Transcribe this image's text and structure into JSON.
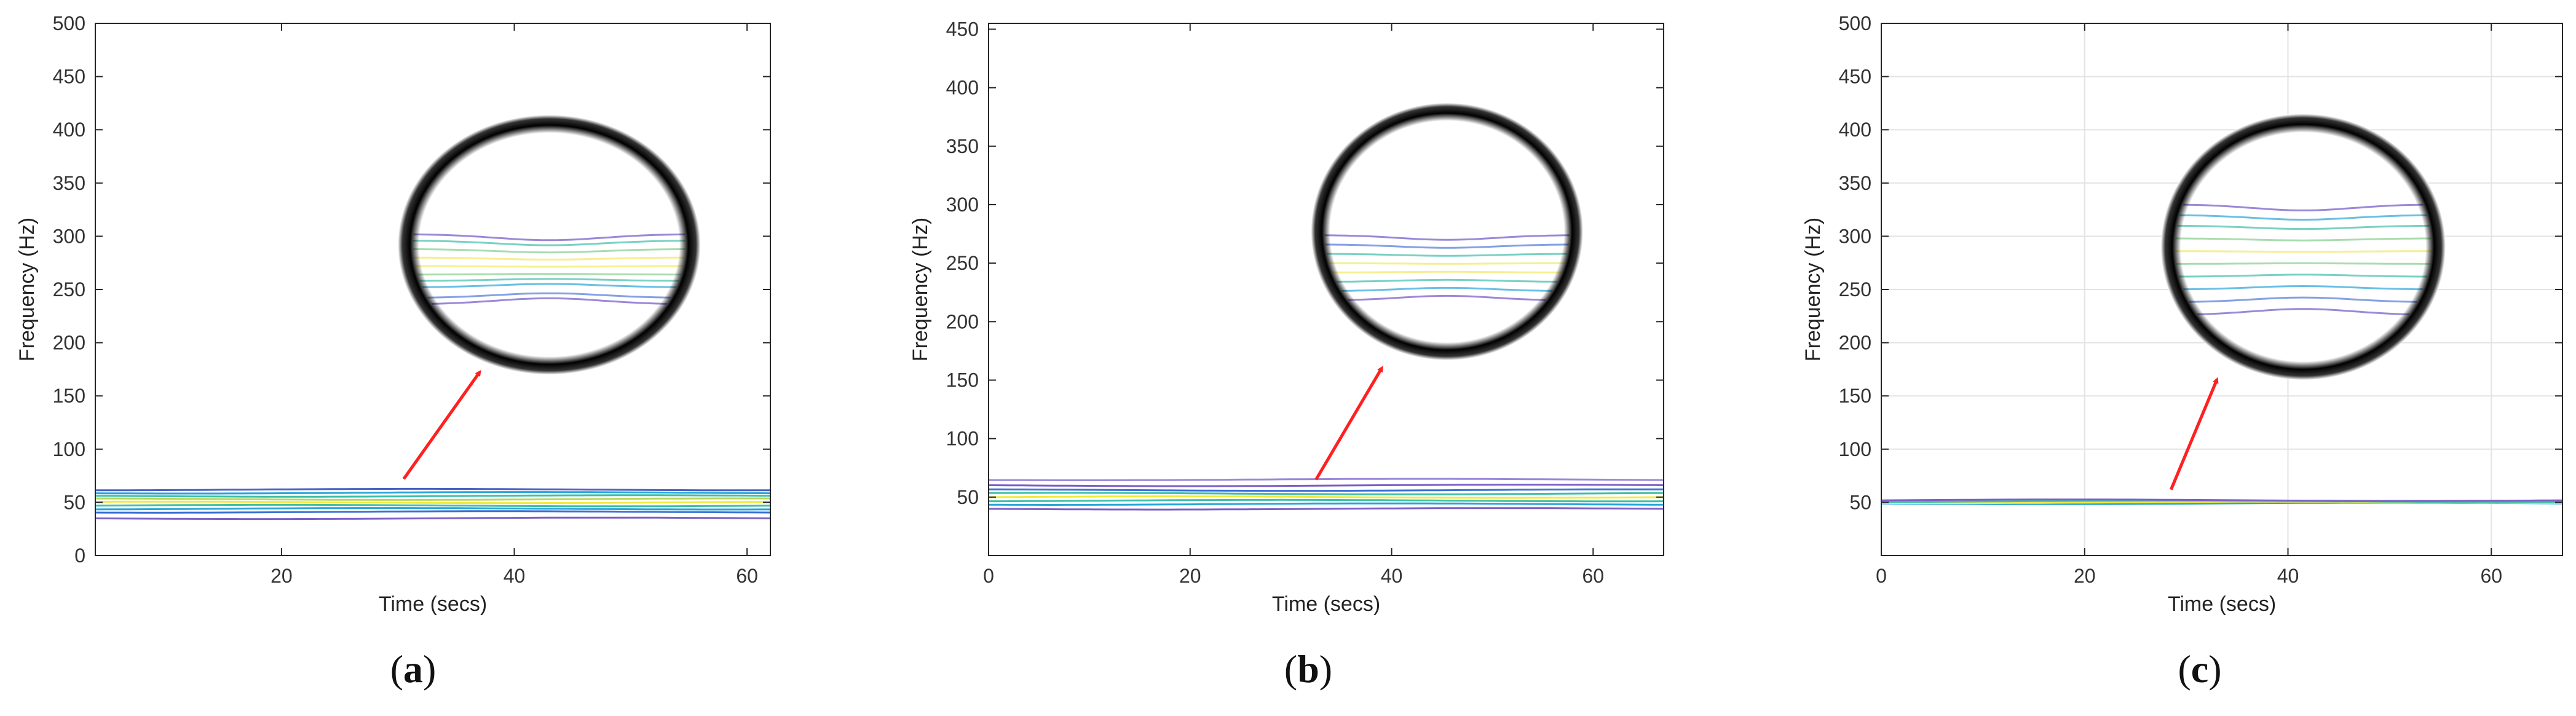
{
  "chart_data": [
    {
      "type": "line",
      "subtype": "contour",
      "panel_label": "a",
      "xlabel": "Time (secs)",
      "ylabel": "Frequency (Hz)",
      "xlim": [
        4,
        62
      ],
      "ylim": [
        0,
        500
      ],
      "xticks": [
        20,
        40,
        60
      ],
      "yticks": [
        0,
        50,
        100,
        150,
        200,
        250,
        300,
        350,
        400,
        450,
        500
      ],
      "grid": false,
      "contour_levels_hz": [
        35,
        41,
        44,
        47,
        50,
        53,
        56,
        59,
        62
      ],
      "contour_colors": [
        "#7b5fc8",
        "#3b6fd6",
        "#27a6d8",
        "#3fbfa8",
        "#f2ea3a",
        "#b9d65a",
        "#3fbfa8",
        "#27a6d8",
        "#4a5fc4"
      ],
      "arrow": {
        "from": [
          30.5,
          72
        ],
        "to": [
          37,
          172
        ]
      },
      "zoom_circle": {
        "center": [
          43,
          292
        ],
        "radius_x": 13,
        "radius_y": 122
      },
      "zoom_levels": [
        236,
        242,
        252,
        258,
        264,
        272,
        280,
        288,
        296,
        302
      ],
      "zoom_colors": [
        "#8a73d0",
        "#6f8fe0",
        "#4fb4e0",
        "#62c9b8",
        "#9ad6a0",
        "#f3ec7a",
        "#f3ec7a",
        "#9ad6a0",
        "#62c9b8",
        "#8a73d0"
      ]
    },
    {
      "type": "line",
      "subtype": "contour",
      "panel_label": "b",
      "xlabel": "Time (secs)",
      "ylabel": "Frequency (Hz)",
      "xlim": [
        0,
        67
      ],
      "ylim": [
        0,
        455
      ],
      "xticks": [
        0,
        20,
        40,
        60
      ],
      "yticks": [
        50,
        100,
        150,
        200,
        250,
        300,
        350,
        400,
        450
      ],
      "grid": false,
      "contour_levels_hz": [
        40,
        44,
        47,
        50,
        53,
        56,
        60,
        65
      ],
      "contour_colors": [
        "#7b5fc8",
        "#27a6d8",
        "#3fbfa8",
        "#f2ea3a",
        "#3fbfa8",
        "#3b6fd6",
        "#7b5fc8",
        "#9a88d8"
      ],
      "arrow": {
        "from": [
          32.5,
          65
        ],
        "to": [
          39,
          160
        ]
      },
      "zoom_circle": {
        "center": [
          45.5,
          277
        ],
        "radius_x": 13.5,
        "radius_y": 110
      },
      "zoom_levels": [
        218,
        226,
        234,
        242,
        250,
        258,
        266,
        274
      ],
      "zoom_colors": [
        "#8a73d0",
        "#4fb4e0",
        "#62c9b8",
        "#f3ec7a",
        "#f3ec7a",
        "#62c9b8",
        "#6f8fe0",
        "#8a73d0"
      ]
    },
    {
      "type": "line",
      "subtype": "contour",
      "panel_label": "c",
      "xlabel": "Time (secs)",
      "ylabel": "Frequency (Hz)",
      "xlim": [
        0,
        67
      ],
      "ylim": [
        0,
        500
      ],
      "xticks": [
        0,
        20,
        40,
        60
      ],
      "yticks": [
        50,
        100,
        150,
        200,
        250,
        300,
        350,
        400,
        450,
        500
      ],
      "grid": true,
      "contour_levels_hz": [
        49,
        50,
        51,
        52
      ],
      "contour_colors": [
        "#27a6d8",
        "#f2ea3a",
        "#3fbfa8",
        "#7b5fc8"
      ],
      "arrow": {
        "from": [
          28.5,
          62
        ],
        "to": [
          33,
          165
        ]
      },
      "zoom_circle": {
        "center": [
          41.5,
          290
        ],
        "radius_x": 14,
        "radius_y": 125
      },
      "zoom_levels": [
        226,
        238,
        250,
        262,
        274,
        286,
        298,
        310,
        320,
        330
      ],
      "zoom_colors": [
        "#8a73d0",
        "#6f8fe0",
        "#4fb4e0",
        "#62c9b8",
        "#9ad6a0",
        "#f3ec7a",
        "#9ad6a0",
        "#62c9b8",
        "#4fb4e0",
        "#8a73d0"
      ]
    }
  ]
}
